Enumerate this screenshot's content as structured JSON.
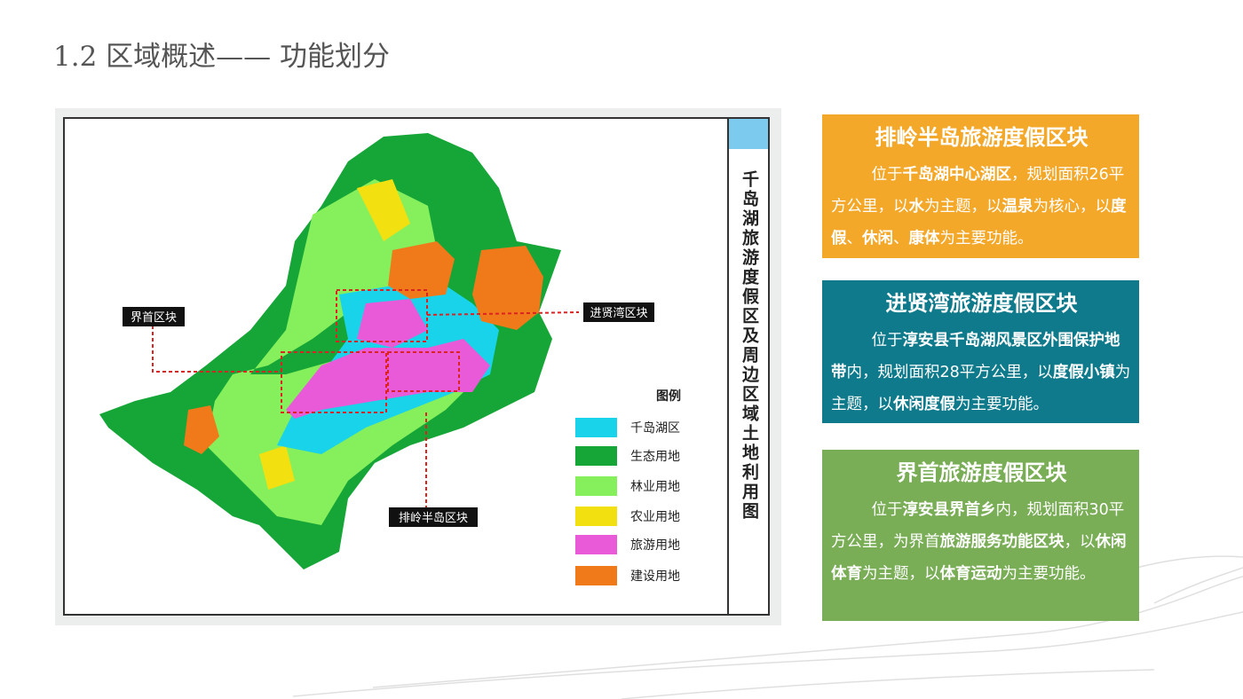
{
  "header": {
    "title": "1.2 区域概述—— 功能划分"
  },
  "map": {
    "title": "千岛湖旅游度假区及周边区域土地利用图",
    "legend": {
      "title": "图例",
      "items": [
        {
          "label": "千岛湖区",
          "color": "#19d3ea"
        },
        {
          "label": "生态用地",
          "color": "#16a637"
        },
        {
          "label": "林业用地",
          "color": "#86ef5c"
        },
        {
          "label": "农业用地",
          "color": "#f2e010"
        },
        {
          "label": "旅游用地",
          "color": "#e95ad8"
        },
        {
          "label": "建设用地",
          "color": "#f07a1a"
        }
      ]
    },
    "labels": [
      "界首区块",
      "进贤湾区块",
      "排岭半岛区块"
    ]
  },
  "blocks": [
    {
      "title": "排岭半岛旅游度假区块",
      "color": "#f4a82a",
      "body": [
        {
          "text": "位于"
        },
        {
          "text": "千岛湖中心湖区",
          "bold": true
        },
        {
          "text": "，规划面积26平方公里，以"
        },
        {
          "text": "水",
          "bold": true
        },
        {
          "text": "为主题，以"
        },
        {
          "text": "温泉",
          "bold": true
        },
        {
          "text": "为核心，以"
        },
        {
          "text": "度假",
          "bold": true
        },
        {
          "text": "、"
        },
        {
          "text": "休闲",
          "bold": true
        },
        {
          "text": "、"
        },
        {
          "text": "康体",
          "bold": true
        },
        {
          "text": "为主要功能。"
        }
      ]
    },
    {
      "title": "进贤湾旅游度假区块",
      "color": "#0f7a8b",
      "body": [
        {
          "text": "位于"
        },
        {
          "text": "淳安县千岛湖风景区外围保护地带",
          "bold": true
        },
        {
          "text": "内，规划面积28平方公里，以"
        },
        {
          "text": "度假小镇",
          "bold": true
        },
        {
          "text": "为主题，以"
        },
        {
          "text": "休闲度假",
          "bold": true
        },
        {
          "text": "为主要功能。"
        }
      ]
    },
    {
      "title": "界首旅游度假区块",
      "color": "#79ad56",
      "body": [
        {
          "text": "位于"
        },
        {
          "text": "淳安县界首乡",
          "bold": true
        },
        {
          "text": "内，规划面积30平方公里，为界首"
        },
        {
          "text": "旅游服务功能区块",
          "bold": true
        },
        {
          "text": "，以"
        },
        {
          "text": "休闲体育",
          "bold": true
        },
        {
          "text": "为主题，以"
        },
        {
          "text": "体育运动",
          "bold": true
        },
        {
          "text": "为主要功能。"
        }
      ]
    }
  ]
}
